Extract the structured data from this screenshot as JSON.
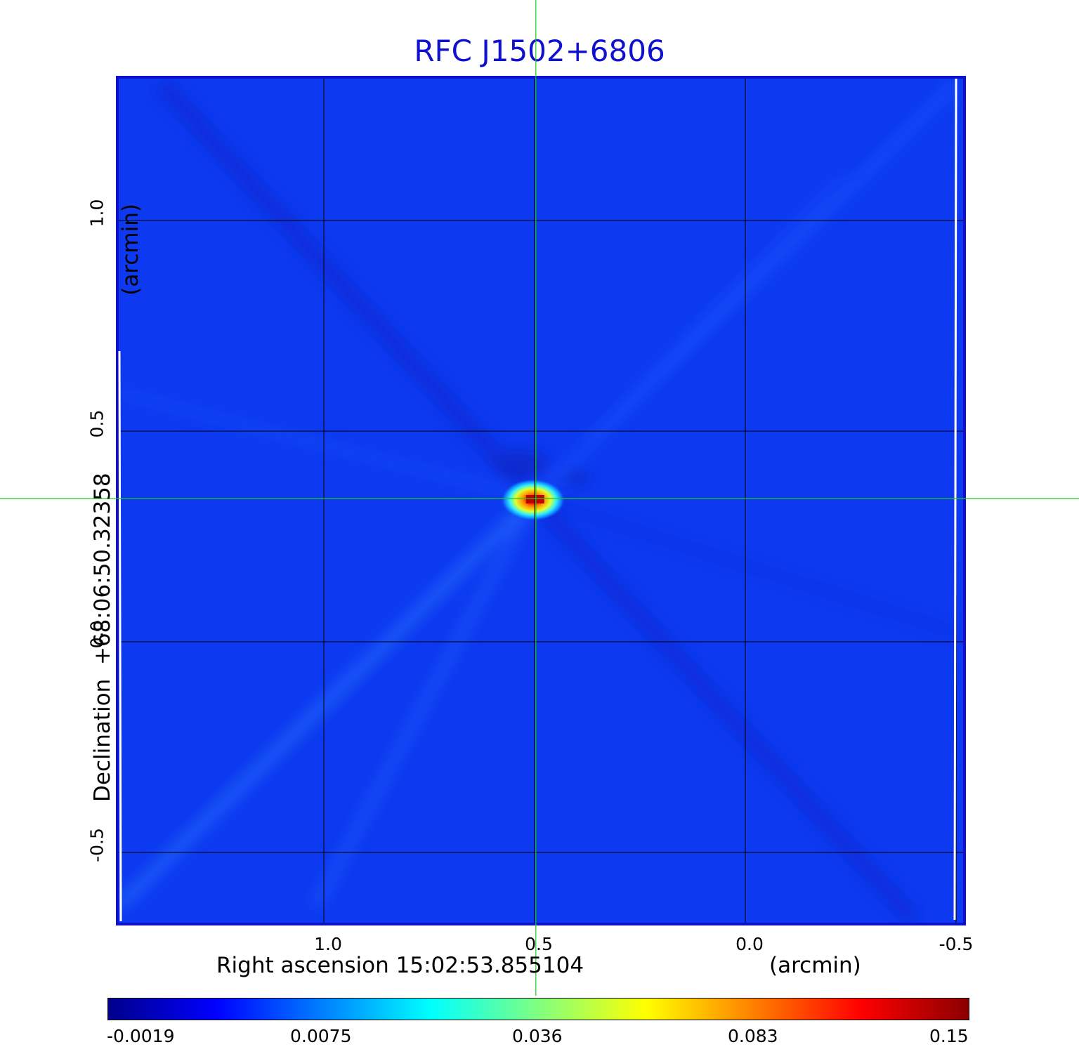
{
  "title": "RFC J1502+6806",
  "x_axis": {
    "label": "Right ascension  15:02:53.855104",
    "unit": "(arcmin)",
    "ticks": [
      "1.0",
      "0.5",
      "0.0",
      "-0.5"
    ],
    "tick_values": [
      1.0,
      0.5,
      0.0,
      -0.5
    ],
    "range": [
      1.49,
      -0.52
    ]
  },
  "y_axis": {
    "label": "Declination  +68:06:50.32358",
    "unit": "(arcmin)",
    "ticks": [
      "1.0",
      "0.5",
      "0.0",
      "-0.5"
    ],
    "tick_values": [
      1.0,
      0.5,
      0.0,
      -0.5
    ],
    "range": [
      -0.67,
      1.34
    ]
  },
  "crosshair": {
    "ra_offset": 0.497,
    "dec_offset": 0.34,
    "color": "#22cc22"
  },
  "source": {
    "ra_offset": 0.497,
    "dec_offset": 0.34,
    "peak": 0.15
  },
  "grid": true,
  "frame_color": "#1010d0",
  "colorbar": {
    "ticks": [
      "-0.0019",
      "0.0075",
      "0.036",
      "0.083",
      "0.15"
    ],
    "colors": [
      "#00008b",
      "#0000ff",
      "#0080ff",
      "#00ffff",
      "#80ff80",
      "#ffff00",
      "#ff8000",
      "#ff0000",
      "#8b0000"
    ]
  },
  "background_color": "#0d3af0"
}
